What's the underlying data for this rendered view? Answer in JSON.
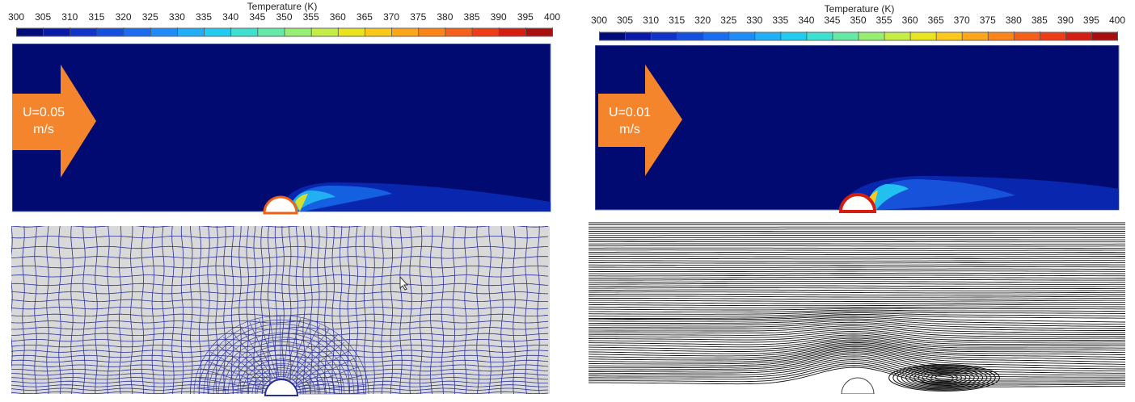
{
  "colorbar": {
    "title": "Temperature (K)",
    "ticks": [
      "300",
      "305",
      "310",
      "315",
      "320",
      "325",
      "330",
      "335",
      "340",
      "345",
      "350",
      "355",
      "360",
      "365",
      "370",
      "375",
      "380",
      "385",
      "390",
      "395",
      "400"
    ],
    "colors": [
      "#000b7a",
      "#0a1aa8",
      "#1034c8",
      "#1450dd",
      "#1a6cf0",
      "#1e8cf8",
      "#20aef8",
      "#22ccf0",
      "#3ee0d0",
      "#66e8a6",
      "#96ee72",
      "#c4ee46",
      "#e8e41e",
      "#fcc81a",
      "#fea61a",
      "#fc8418",
      "#f6601a",
      "#ee3c16",
      "#d41e12",
      "#a81010",
      "#7a0a0a"
    ]
  },
  "panels": {
    "top_left": {
      "velocity_line1": "U=0.05",
      "velocity_line2": "m/s"
    },
    "top_right": {
      "velocity_line1": "U=0.01",
      "velocity_line2": "m/s"
    }
  },
  "colors": {
    "domain": "#000a70",
    "arrow": "#f5852d",
    "mesh_line": "#2a2f96",
    "mesh_bg": "#d9d9d9",
    "streamline": "#111111"
  }
}
